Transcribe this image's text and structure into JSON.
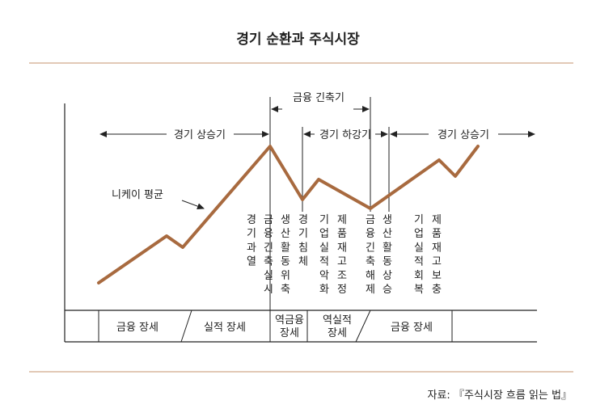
{
  "title": "경기 순환과 주식시장",
  "source": "자료: 『주식시장 흐름 읽는 법』",
  "colors": {
    "line": "#a86a3f",
    "rule": "#e2c9b6",
    "text": "#222222"
  },
  "ranges": {
    "left_up": "경기 상승기",
    "tightening": "금융 긴축기",
    "down": "경기 하강기",
    "right_up": "경기 상승기"
  },
  "series_label": "니케이 평균",
  "events": [
    {
      "chars": [
        "경",
        "기",
        "과",
        "열"
      ]
    },
    {
      "chars": [
        "금",
        "융",
        "긴",
        "축",
        "실",
        "시"
      ]
    },
    {
      "chars": [
        "생",
        "산",
        "활",
        "동",
        "위",
        "축"
      ]
    },
    {
      "chars": [
        "경",
        "기",
        "침",
        "체"
      ]
    },
    {
      "chars": [
        "기",
        "업",
        "실",
        "적",
        "악",
        "화"
      ]
    },
    {
      "chars": [
        "제",
        "품",
        "재",
        "고",
        "조",
        "정"
      ]
    },
    {
      "chars": [
        "금",
        "융",
        "긴",
        "축",
        "해",
        "제"
      ]
    },
    {
      "chars": [
        "생",
        "산",
        "활",
        "동",
        "상",
        "승"
      ]
    },
    {
      "chars": [
        "기",
        "업",
        "실",
        "적",
        "회",
        "복"
      ]
    },
    {
      "chars": [
        "제",
        "품",
        "재",
        "고",
        "보",
        "충"
      ]
    }
  ],
  "phases": [
    {
      "lines": [
        "금융 장세"
      ]
    },
    {
      "lines": [
        "실적 장세"
      ]
    },
    {
      "lines": [
        "역금융",
        "장세"
      ]
    },
    {
      "lines": [
        "역실적",
        "장세"
      ]
    },
    {
      "lines": [
        "금융 장세"
      ]
    }
  ]
}
